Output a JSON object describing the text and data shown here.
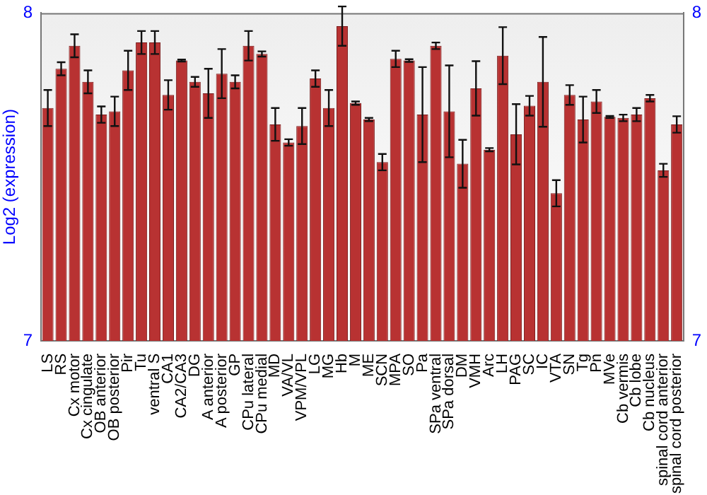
{
  "chart_data": {
    "type": "bar",
    "ylabel": "Log2 (expression)",
    "categories": [
      "LS",
      "RS",
      "Cx motor",
      "Cx cingulate",
      "OB anterior",
      "OB posterior",
      "Pir",
      "Tu",
      "ventral S",
      "CA1",
      "CA2/CA3",
      "DG",
      "A anterior",
      "A posterior",
      "GP",
      "CPu lateral",
      "CPu medial",
      "MD",
      "VA/VL",
      "VPM/VPL",
      "LG",
      "MG",
      "Hb",
      "M",
      "ME",
      "SCN",
      "MPA",
      "SO",
      "Pa",
      "SPa ventral",
      "SPa dorsal",
      "DM",
      "VMH",
      "Arc",
      "LH",
      "PAG",
      "SC",
      "IC",
      "VTA",
      "SN",
      "Tg",
      "Pn",
      "MVe",
      "Cb vermis",
      "Cb lobe",
      "Cb nucleus",
      "spinal cord anterior",
      "spinal cord posterior"
    ],
    "values": [
      7.71,
      7.83,
      7.9,
      7.79,
      7.69,
      7.7,
      7.825,
      7.91,
      7.91,
      7.75,
      7.855,
      7.79,
      7.755,
      7.815,
      7.79,
      7.9,
      7.875,
      7.66,
      7.605,
      7.655,
      7.8,
      7.71,
      7.96,
      7.725,
      7.675,
      7.545,
      7.86,
      7.855,
      7.69,
      7.9,
      7.7,
      7.54,
      7.77,
      7.583,
      7.87,
      7.63,
      7.717,
      7.79,
      7.45,
      7.75,
      7.675,
      7.73,
      7.683,
      7.68,
      7.69,
      7.74,
      7.52,
      7.66
    ],
    "errors": [
      0.055,
      0.02,
      0.035,
      0.035,
      0.025,
      0.045,
      0.06,
      0.035,
      0.035,
      0.045,
      0.003,
      0.015,
      0.075,
      0.075,
      0.02,
      0.045,
      0.008,
      0.05,
      0.01,
      0.055,
      0.025,
      0.055,
      0.06,
      0.005,
      0.005,
      0.025,
      0.025,
      0.004,
      0.145,
      0.01,
      0.14,
      0.073,
      0.083,
      0.005,
      0.087,
      0.092,
      0.03,
      0.137,
      0.04,
      0.03,
      0.07,
      0.035,
      0.003,
      0.01,
      0.02,
      0.01,
      0.02,
      0.025
    ],
    "color": "#b83232",
    "ylim": [
      7,
      8
    ],
    "yticks": [
      7,
      8
    ],
    "y2lim": [
      7,
      8
    ],
    "y2ticks": [
      7,
      8
    ]
  }
}
